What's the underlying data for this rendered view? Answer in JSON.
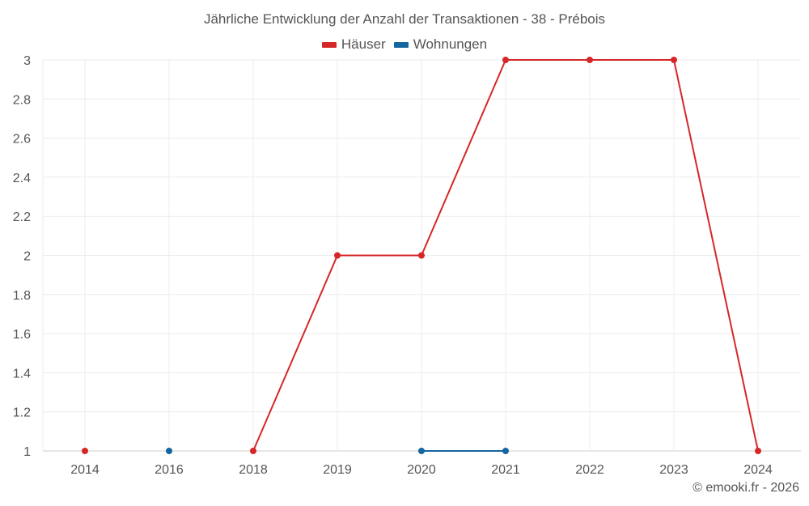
{
  "chart_data": {
    "type": "line",
    "title": "Jährliche Entwicklung der Anzahl der Transaktionen - 38 - Prébois",
    "xlabel": "",
    "ylabel": "",
    "categories": [
      "2014",
      "2016",
      "2018",
      "2019",
      "2020",
      "2021",
      "2022",
      "2023",
      "2024"
    ],
    "ylim": [
      1,
      3
    ],
    "yticks": [
      "3",
      "2.8",
      "2.6",
      "2.4",
      "2.2",
      "2",
      "1.8",
      "1.6",
      "1.4",
      "1.2",
      "1"
    ],
    "grid": true,
    "legend_position": "top",
    "series": [
      {
        "name": "Häuser",
        "color": "#d62728",
        "values": [
          1,
          null,
          1,
          2,
          2,
          3,
          3,
          3,
          1
        ]
      },
      {
        "name": "Wohnungen",
        "color": "#1565a0",
        "values": [
          null,
          1,
          null,
          null,
          1,
          1,
          null,
          null,
          null
        ]
      }
    ]
  },
  "legend": {
    "items": [
      {
        "label": "Häuser",
        "color": "#d62728"
      },
      {
        "label": "Wohnungen",
        "color": "#1565a0"
      }
    ]
  },
  "credit": "© emooki.fr - 2026"
}
